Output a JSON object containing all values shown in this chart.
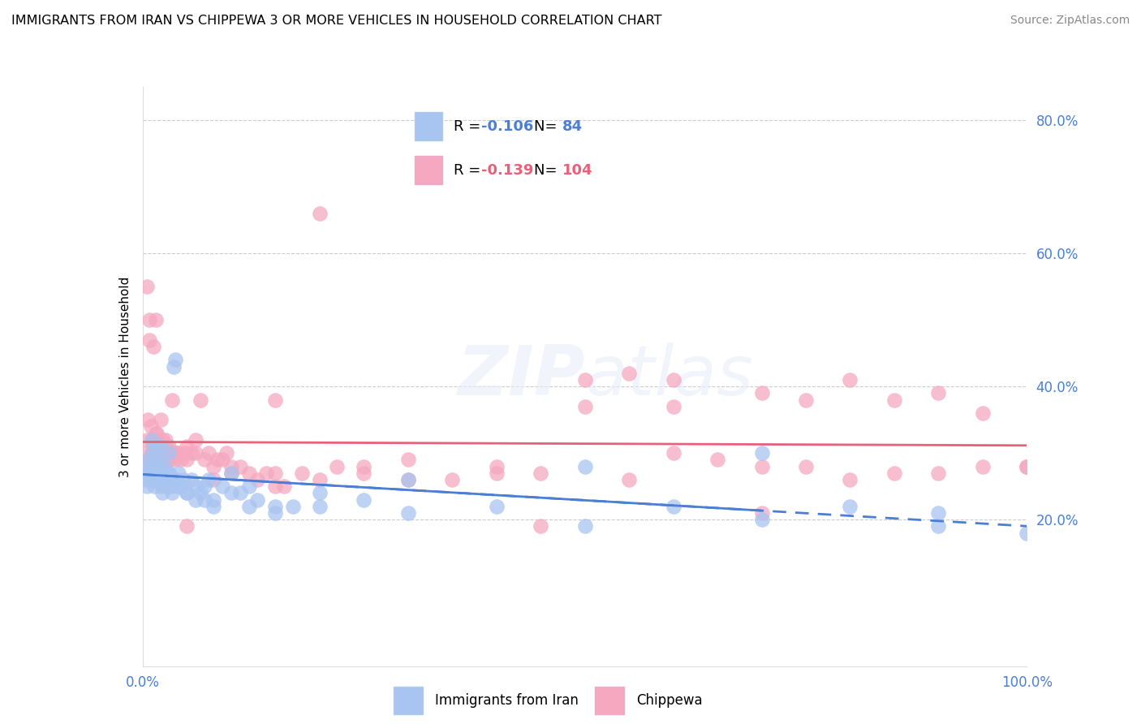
{
  "title": "IMMIGRANTS FROM IRAN VS CHIPPEWA 3 OR MORE VEHICLES IN HOUSEHOLD CORRELATION CHART",
  "source": "Source: ZipAtlas.com",
  "ylabel": "3 or more Vehicles in Household",
  "legend_label1": "Immigrants from Iran",
  "legend_label2": "Chippewa",
  "R1": -0.106,
  "N1": 84,
  "N2": 104,
  "R2": -0.139,
  "color1": "#a8c4f0",
  "color2": "#f5a8c0",
  "line_color1": "#4a7fd4",
  "line_color2": "#e8607a",
  "tick_color": "#4a7fd4",
  "background_color": "#ffffff",
  "grid_color": "#cccccc",
  "watermark": "ZIPatlas",
  "xlim": [
    0.0,
    1.0
  ],
  "ylim": [
    -0.02,
    0.85
  ],
  "y_ticks": [
    0.2,
    0.4,
    0.6,
    0.8
  ],
  "y_tick_labels": [
    "20.0%",
    "40.0%",
    "60.0%",
    "80.0%"
  ],
  "iran_x": [
    0.003,
    0.004,
    0.005,
    0.006,
    0.007,
    0.008,
    0.009,
    0.01,
    0.011,
    0.012,
    0.013,
    0.014,
    0.015,
    0.016,
    0.017,
    0.018,
    0.019,
    0.02,
    0.021,
    0.022,
    0.023,
    0.024,
    0.025,
    0.026,
    0.027,
    0.028,
    0.029,
    0.03,
    0.031,
    0.032,
    0.033,
    0.035,
    0.037,
    0.039,
    0.041,
    0.043,
    0.046,
    0.05,
    0.055,
    0.06,
    0.065,
    0.07,
    0.075,
    0.08,
    0.09,
    0.1,
    0.11,
    0.12,
    0.13,
    0.15,
    0.17,
    0.2,
    0.25,
    0.3,
    0.4,
    0.5,
    0.6,
    0.7,
    0.8,
    0.9,
    1.0,
    0.005,
    0.01,
    0.015,
    0.02,
    0.025,
    0.03,
    0.035,
    0.04,
    0.05,
    0.06,
    0.07,
    0.08,
    0.1,
    0.12,
    0.15,
    0.2,
    0.3,
    0.5,
    0.7,
    0.9,
    0.01,
    0.02,
    0.03
  ],
  "iran_y": [
    0.27,
    0.26,
    0.25,
    0.28,
    0.29,
    0.27,
    0.26,
    0.28,
    0.27,
    0.26,
    0.25,
    0.27,
    0.29,
    0.28,
    0.27,
    0.26,
    0.27,
    0.26,
    0.25,
    0.24,
    0.27,
    0.26,
    0.27,
    0.26,
    0.27,
    0.25,
    0.26,
    0.27,
    0.26,
    0.25,
    0.24,
    0.43,
    0.44,
    0.26,
    0.27,
    0.25,
    0.26,
    0.24,
    0.26,
    0.25,
    0.24,
    0.25,
    0.26,
    0.23,
    0.25,
    0.27,
    0.24,
    0.25,
    0.23,
    0.22,
    0.22,
    0.24,
    0.23,
    0.26,
    0.22,
    0.28,
    0.22,
    0.3,
    0.22,
    0.21,
    0.18,
    0.27,
    0.3,
    0.31,
    0.29,
    0.28,
    0.27,
    0.26,
    0.25,
    0.24,
    0.23,
    0.23,
    0.22,
    0.24,
    0.22,
    0.21,
    0.22,
    0.21,
    0.19,
    0.2,
    0.19,
    0.32,
    0.31,
    0.3
  ],
  "chippewa_x": [
    0.004,
    0.005,
    0.006,
    0.007,
    0.008,
    0.009,
    0.01,
    0.011,
    0.012,
    0.013,
    0.014,
    0.015,
    0.016,
    0.017,
    0.018,
    0.019,
    0.02,
    0.021,
    0.022,
    0.023,
    0.024,
    0.025,
    0.026,
    0.027,
    0.028,
    0.029,
    0.03,
    0.031,
    0.033,
    0.035,
    0.037,
    0.04,
    0.043,
    0.047,
    0.05,
    0.055,
    0.06,
    0.065,
    0.07,
    0.075,
    0.08,
    0.085,
    0.09,
    0.095,
    0.1,
    0.11,
    0.12,
    0.13,
    0.14,
    0.15,
    0.16,
    0.18,
    0.2,
    0.22,
    0.25,
    0.3,
    0.35,
    0.4,
    0.45,
    0.5,
    0.55,
    0.6,
    0.65,
    0.7,
    0.75,
    0.8,
    0.85,
    0.9,
    0.95,
    1.0,
    0.005,
    0.008,
    0.012,
    0.015,
    0.018,
    0.022,
    0.026,
    0.03,
    0.035,
    0.04,
    0.05,
    0.06,
    0.08,
    0.1,
    0.15,
    0.2,
    0.3,
    0.4,
    0.5,
    0.6,
    0.7,
    0.8,
    0.9,
    0.15,
    0.45,
    0.6,
    0.75,
    0.85,
    0.95,
    1.0,
    0.05,
    0.25,
    0.55,
    0.7
  ],
  "chippewa_y": [
    0.3,
    0.32,
    0.35,
    0.29,
    0.5,
    0.34,
    0.32,
    0.3,
    0.31,
    0.29,
    0.31,
    0.5,
    0.33,
    0.32,
    0.3,
    0.29,
    0.35,
    0.31,
    0.3,
    0.29,
    0.31,
    0.29,
    0.32,
    0.31,
    0.3,
    0.29,
    0.3,
    0.29,
    0.38,
    0.3,
    0.29,
    0.3,
    0.29,
    0.3,
    0.31,
    0.3,
    0.32,
    0.38,
    0.29,
    0.3,
    0.28,
    0.29,
    0.29,
    0.3,
    0.28,
    0.28,
    0.27,
    0.26,
    0.27,
    0.27,
    0.25,
    0.27,
    0.26,
    0.28,
    0.27,
    0.29,
    0.26,
    0.28,
    0.27,
    0.37,
    0.26,
    0.3,
    0.29,
    0.28,
    0.28,
    0.26,
    0.27,
    0.27,
    0.28,
    0.28,
    0.55,
    0.47,
    0.46,
    0.33,
    0.31,
    0.32,
    0.3,
    0.31,
    0.3,
    0.3,
    0.29,
    0.3,
    0.26,
    0.27,
    0.25,
    0.66,
    0.26,
    0.27,
    0.41,
    0.41,
    0.39,
    0.41,
    0.39,
    0.38,
    0.19,
    0.37,
    0.38,
    0.38,
    0.36,
    0.28,
    0.19,
    0.28,
    0.42,
    0.21
  ]
}
